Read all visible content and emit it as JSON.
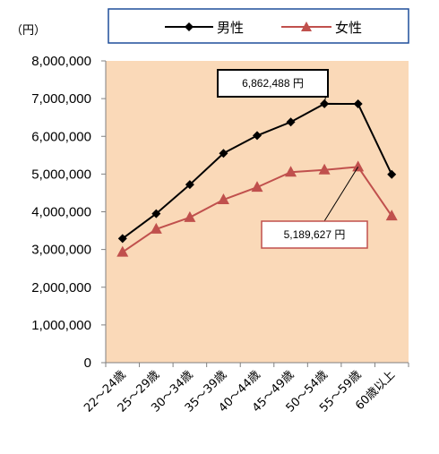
{
  "chart_data": {
    "type": "line",
    "unit_label": "（円）",
    "categories": [
      "22～24歳",
      "25～29歳",
      "30～34歳",
      "35～39歳",
      "40～44歳",
      "45～49歳",
      "50～54歳",
      "55～59歳",
      "60歳以上"
    ],
    "ylim": [
      0,
      8000000
    ],
    "y_ticks": [
      "0",
      "1,000,000",
      "2,000,000",
      "3,000,000",
      "4,000,000",
      "5,000,000",
      "6,000,000",
      "7,000,000",
      "8,000,000"
    ],
    "grid": false,
    "legend_position": "top",
    "plot_background": "#FAD9B8",
    "series": [
      {
        "name": "男性",
        "color": "#000000",
        "marker": "diamond",
        "values": [
          3290000,
          3950000,
          4720000,
          5550000,
          6020000,
          6380000,
          6862488,
          6860000,
          4990000
        ]
      },
      {
        "name": "女性",
        "color": "#C0504D",
        "marker": "triangle",
        "values": [
          2930000,
          3540000,
          3850000,
          4320000,
          4650000,
          5050000,
          5110000,
          5189627,
          3890000
        ]
      }
    ],
    "annotations": [
      {
        "text": "6,862,488 円",
        "series": 0,
        "point": 6
      },
      {
        "text": "5,189,627 円",
        "series": 1,
        "point": 7
      }
    ]
  }
}
